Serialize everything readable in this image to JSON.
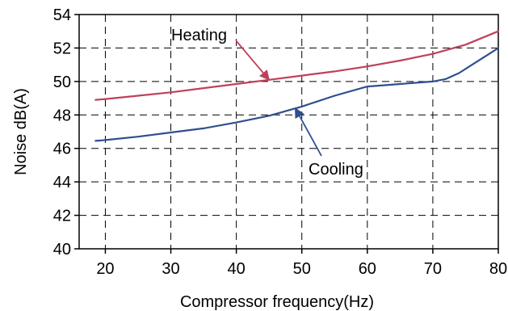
{
  "chart_data": {
    "type": "line",
    "xlabel": "Compressor frequency(Hz)",
    "ylabel": "Noise dB(A)",
    "xlim": [
      16,
      80
    ],
    "ylim": [
      40,
      54
    ],
    "x_ticks": [
      "20",
      "30",
      "40",
      "50",
      "60",
      "70",
      "80"
    ],
    "y_ticks": [
      "40",
      "42",
      "44",
      "46",
      "48",
      "50",
      "52",
      "54"
    ],
    "grid": "dashed",
    "series": [
      {
        "name": "Heating",
        "color": "#c0405a",
        "x": [
          18.5,
          20,
          25,
          30,
          35,
          40,
          45,
          50,
          55,
          60,
          65,
          70,
          75,
          80
        ],
        "y": [
          48.9,
          48.95,
          49.15,
          49.35,
          49.6,
          49.85,
          50.1,
          50.35,
          50.6,
          50.9,
          51.25,
          51.65,
          52.2,
          53.0
        ]
      },
      {
        "name": "Cooling",
        "color": "#2f4f8f",
        "x": [
          18.5,
          20,
          25,
          30,
          35,
          40,
          45,
          50,
          55,
          60,
          65,
          70,
          72,
          74,
          76,
          78,
          80
        ],
        "y": [
          46.45,
          46.5,
          46.7,
          46.95,
          47.2,
          47.55,
          47.95,
          48.5,
          49.15,
          49.7,
          49.85,
          50.0,
          50.15,
          50.5,
          51.0,
          51.5,
          52.0
        ]
      }
    ],
    "annotations": [
      {
        "text": "Heating",
        "series": "Heating",
        "arrow_to": [
          45,
          50.1
        ]
      },
      {
        "text": "Cooling",
        "series": "Cooling",
        "arrow_to": [
          49,
          48.4
        ]
      }
    ]
  }
}
